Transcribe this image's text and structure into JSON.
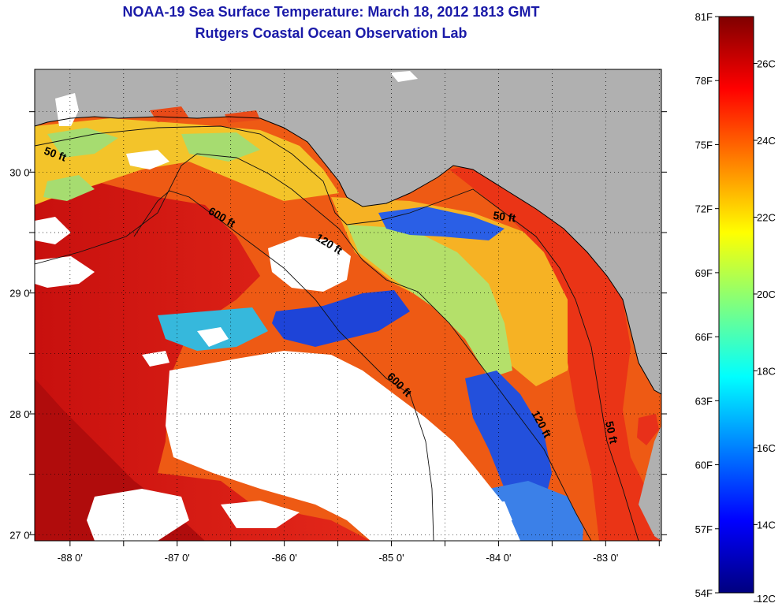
{
  "title": {
    "line1": "NOAA-19 Sea Surface Temperature:  March 18, 2012 1813 GMT",
    "line2": "Rutgers Coastal Ocean Observation Lab"
  },
  "axes": {
    "x_ticks": [
      {
        "lon": -88,
        "label": "-88 0'"
      },
      {
        "lon": -87,
        "label": "-87 0'"
      },
      {
        "lon": -86,
        "label": "-86 0'"
      },
      {
        "lon": -85,
        "label": "-85 0'"
      },
      {
        "lon": -84,
        "label": "-84 0'"
      },
      {
        "lon": -83,
        "label": "-83 0'"
      }
    ],
    "y_ticks": [
      {
        "lat": 30,
        "label": "30 0'"
      },
      {
        "lat": 29,
        "label": "29 0'"
      },
      {
        "lat": 28,
        "label": "28 0'"
      },
      {
        "lat": 27,
        "label": "27 0'"
      }
    ],
    "lon_range": [
      -88.33,
      -82.48
    ],
    "lat_range": [
      26.95,
      30.85
    ]
  },
  "contour_labels": [
    {
      "text": "50 ft",
      "lon": -88.15,
      "lat": 30.12,
      "angle": 20
    },
    {
      "text": "600 ft",
      "lon": -86.6,
      "lat": 29.6,
      "angle": 30
    },
    {
      "text": "120 ft",
      "lon": -85.6,
      "lat": 29.38,
      "angle": 32
    },
    {
      "text": "50 ft",
      "lon": -83.95,
      "lat": 29.6,
      "angle": 8
    },
    {
      "text": "600 ft",
      "lon": -84.95,
      "lat": 28.22,
      "angle": 45
    },
    {
      "text": "120 ft",
      "lon": -83.63,
      "lat": 27.9,
      "angle": 62
    },
    {
      "text": "50 ft",
      "lon": -82.98,
      "lat": 27.84,
      "angle": 78
    }
  ],
  "colorbar": {
    "fahrenheit_labels": [
      "81F",
      "78F",
      "75F",
      "72F",
      "69F",
      "66F",
      "63F",
      "60F",
      "57F",
      "54F"
    ],
    "celsius_labels": [
      "26C",
      "24C",
      "22C",
      "20C",
      "18C",
      "16C",
      "14C",
      "12C"
    ],
    "f_min": 54,
    "f_max": 81,
    "c_values": [
      26,
      24,
      22,
      20,
      18,
      16,
      14,
      12
    ],
    "colors": [
      "#00007f",
      "#0000ff",
      "#007fff",
      "#00ffff",
      "#7fff7f",
      "#ffff00",
      "#ff7f00",
      "#ff0000",
      "#7f0000"
    ]
  },
  "palette": {
    "land": "#b0b0b0",
    "cloud": "#ffffff",
    "warm_dark": "#c41010",
    "warm": "#e82a12",
    "orange": "#f06a16",
    "light_orange": "#f5a320",
    "yellow": "#f5d430",
    "green": "#a8e070",
    "cyan": "#30c0e0",
    "blue": "#1a4fe0",
    "deep_blue": "#0a1fb0",
    "title_color": "#1a1aa8"
  }
}
